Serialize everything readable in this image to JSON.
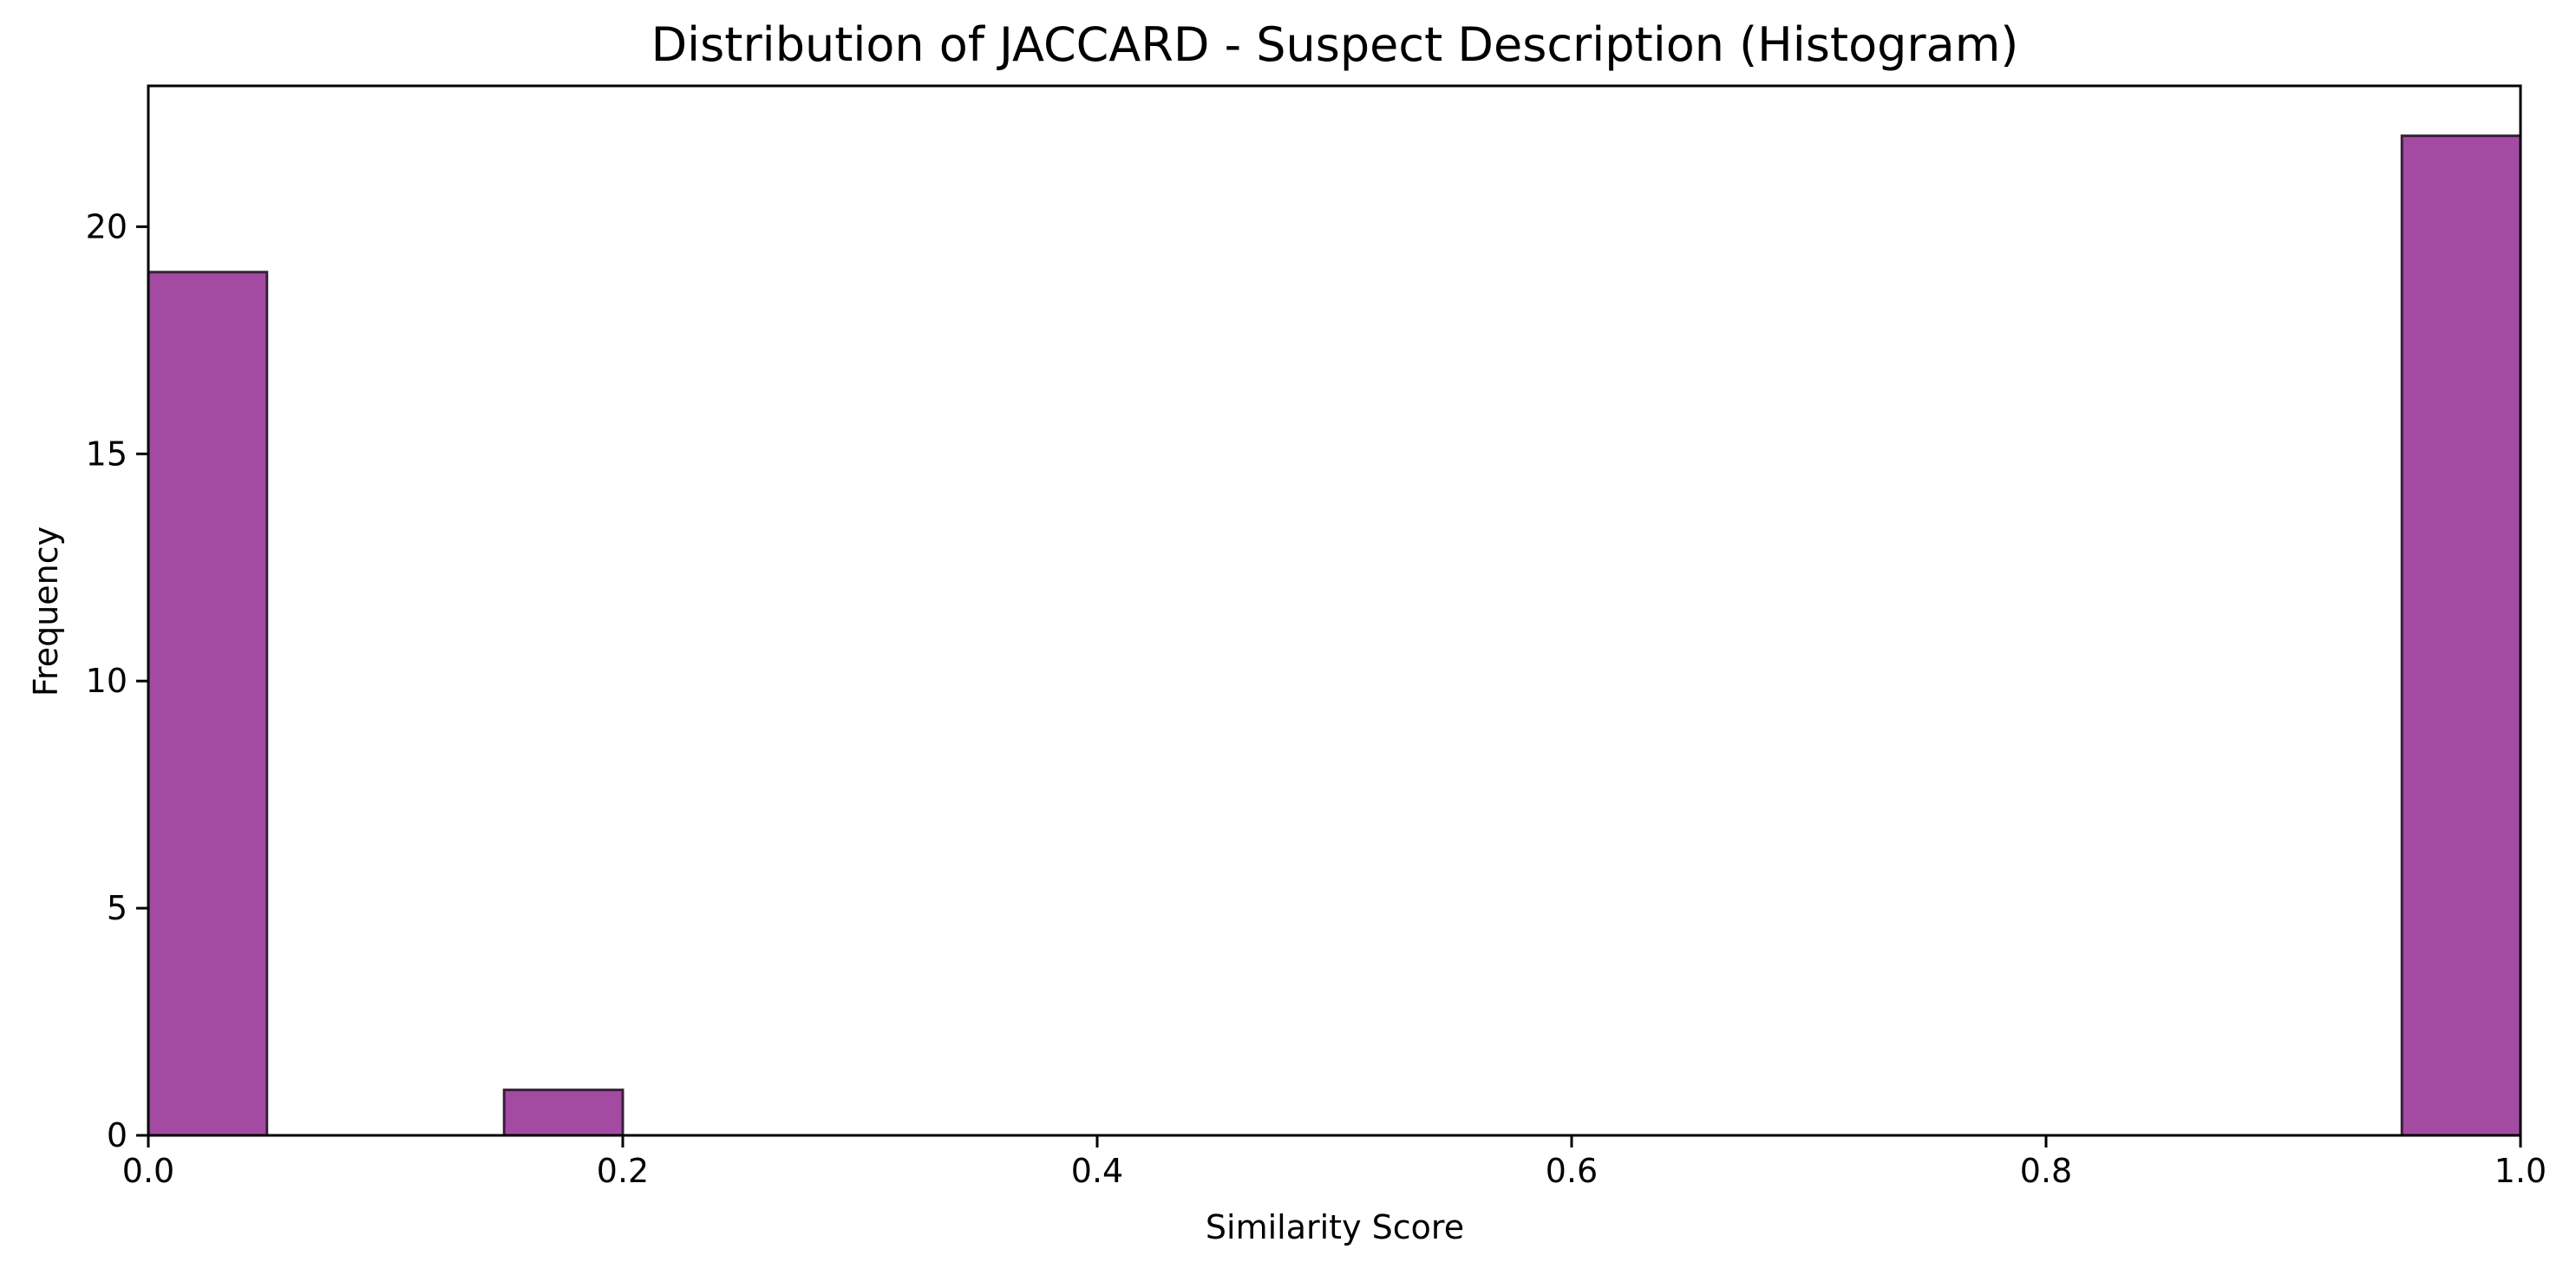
{
  "chart_data": {
    "type": "bar",
    "title": "Distribution of JACCARD - Suspect Description (Histogram)",
    "xlabel": "Similarity Score",
    "ylabel": "Frequency",
    "xlim": [
      0.0,
      1.0
    ],
    "ylim": [
      0,
      23.1
    ],
    "grid": false,
    "x_ticks": [
      "0.0",
      "0.2",
      "0.4",
      "0.6",
      "0.8",
      "1.0"
    ],
    "x_tick_values": [
      0.0,
      0.2,
      0.4,
      0.6,
      0.8,
      1.0
    ],
    "y_ticks": [
      "0",
      "5",
      "10",
      "15",
      "20"
    ],
    "y_tick_values": [
      0,
      5,
      10,
      15,
      20
    ],
    "bins": [
      {
        "start": 0.0,
        "end": 0.05,
        "count": 19
      },
      {
        "start": 0.15,
        "end": 0.2,
        "count": 1
      },
      {
        "start": 0.95,
        "end": 1.0,
        "count": 22
      }
    ],
    "bar_color": "#a34ba3",
    "edge_color": "#3a1f3a"
  }
}
